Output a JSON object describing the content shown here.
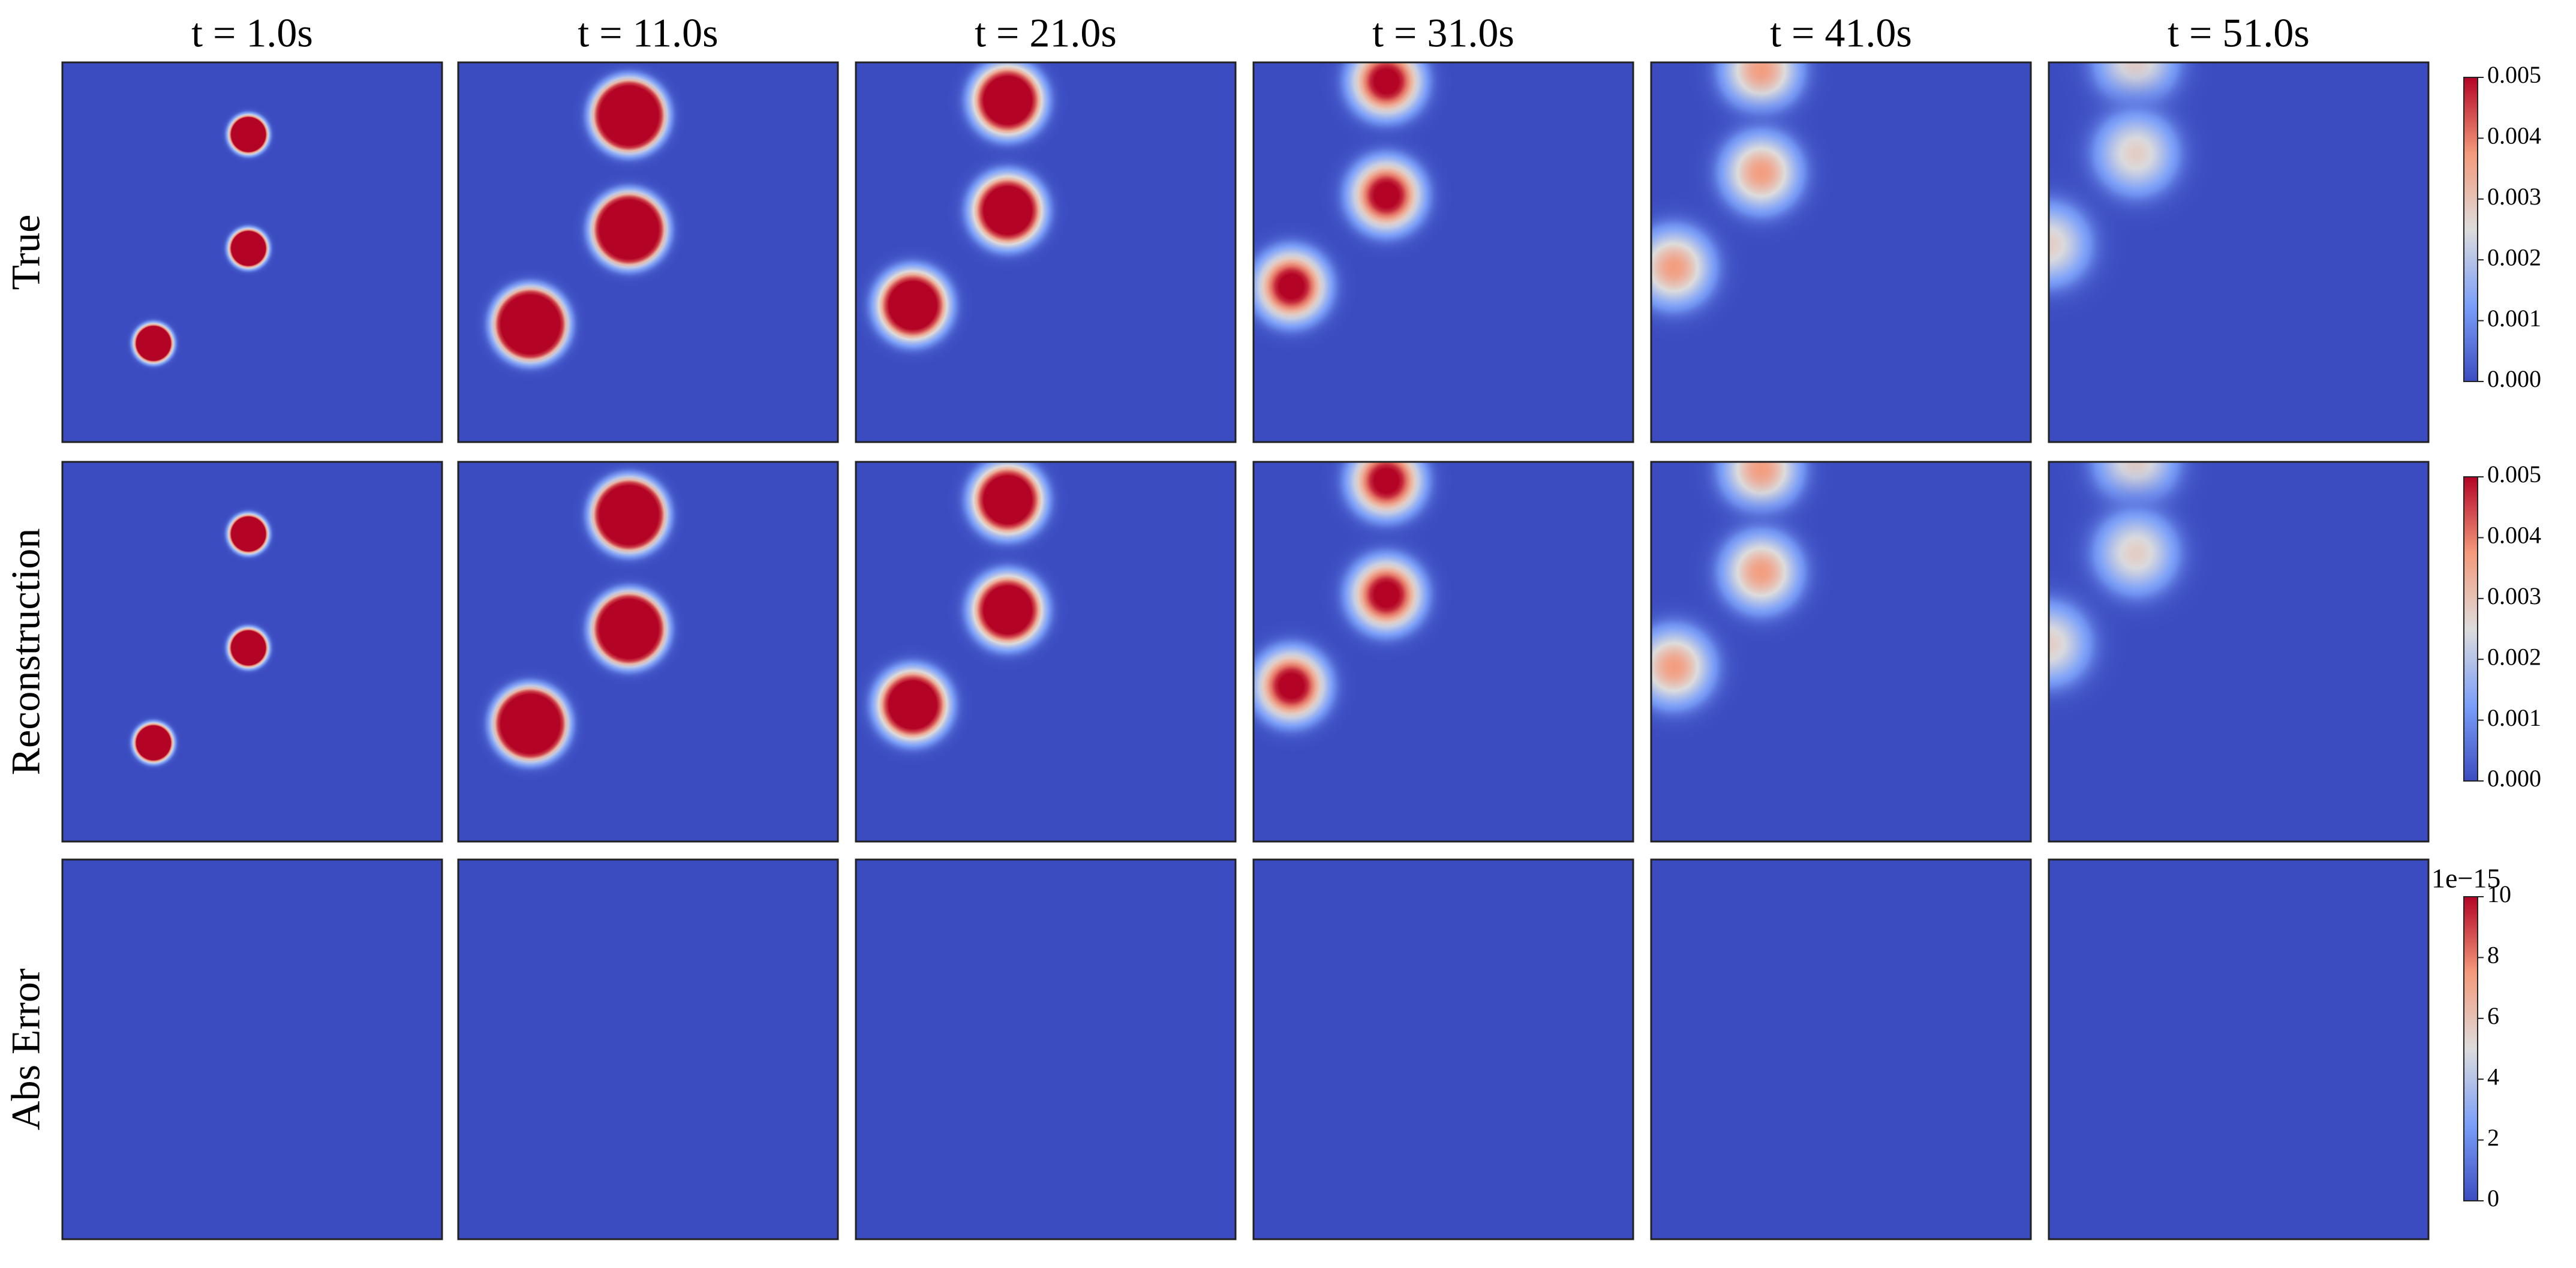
{
  "chart_data": {
    "type": "heatmap",
    "columns": [
      "t = 1.0s",
      "t = 11.0s",
      "t = 21.0s",
      "t = 31.0s",
      "t = 41.0s",
      "t = 51.0s"
    ],
    "rows": [
      {
        "label": "True",
        "background": 0,
        "clim": [
          0,
          0.005
        ],
        "cticks": [
          {
            "value": 0,
            "label": "0.000"
          },
          0.001,
          0.002,
          0.003,
          0.004,
          0.005
        ],
        "panels": [
          [
            {
              "x": 0.49,
              "y": 0.19,
              "sigma": 0.03,
              "peak": 0.05
            },
            {
              "x": 0.49,
              "y": 0.49,
              "sigma": 0.03,
              "peak": 0.05
            },
            {
              "x": 0.24,
              "y": 0.74,
              "sigma": 0.03,
              "peak": 0.05
            }
          ],
          [
            {
              "x": 0.45,
              "y": 0.14,
              "sigma": 0.062,
              "peak": 0.03
            },
            {
              "x": 0.45,
              "y": 0.44,
              "sigma": 0.062,
              "peak": 0.03
            },
            {
              "x": 0.19,
              "y": 0.69,
              "sigma": 0.062,
              "peak": 0.03
            }
          ],
          [
            {
              "x": 0.4,
              "y": 0.1,
              "sigma": 0.072,
              "peak": 0.012
            },
            {
              "x": 0.4,
              "y": 0.39,
              "sigma": 0.072,
              "peak": 0.012
            },
            {
              "x": 0.15,
              "y": 0.64,
              "sigma": 0.072,
              "peak": 0.012
            }
          ],
          [
            {
              "x": 0.35,
              "y": 0.05,
              "sigma": 0.085,
              "peak": 0.006
            },
            {
              "x": 0.35,
              "y": 0.35,
              "sigma": 0.085,
              "peak": 0.006
            },
            {
              "x": 0.1,
              "y": 0.59,
              "sigma": 0.085,
              "peak": 0.006
            }
          ],
          [
            {
              "x": 0.29,
              "y": 0.02,
              "sigma": 0.1,
              "peak": 0.0037
            },
            {
              "x": 0.29,
              "y": 0.29,
              "sigma": 0.1,
              "peak": 0.0037
            },
            {
              "x": 0.06,
              "y": 0.54,
              "sigma": 0.1,
              "peak": 0.0037
            }
          ],
          [
            {
              "x": 0.23,
              "y": 0.0,
              "sigma": 0.11,
              "peak": 0.0028
            },
            {
              "x": 0.23,
              "y": 0.24,
              "sigma": 0.11,
              "peak": 0.0028
            },
            {
              "x": 0.0,
              "y": 0.48,
              "sigma": 0.11,
              "peak": 0.0028
            }
          ]
        ]
      },
      {
        "label": "Reconstruction",
        "background": 0,
        "clim": [
          0,
          0.005
        ],
        "cticks": [
          {
            "value": 0,
            "label": "0.000"
          },
          0.001,
          0.002,
          0.003,
          0.004,
          0.005
        ],
        "panels": [
          [
            {
              "x": 0.49,
              "y": 0.19,
              "sigma": 0.03,
              "peak": 0.05
            },
            {
              "x": 0.49,
              "y": 0.49,
              "sigma": 0.03,
              "peak": 0.05
            },
            {
              "x": 0.24,
              "y": 0.74,
              "sigma": 0.03,
              "peak": 0.05
            }
          ],
          [
            {
              "x": 0.45,
              "y": 0.14,
              "sigma": 0.062,
              "peak": 0.03
            },
            {
              "x": 0.45,
              "y": 0.44,
              "sigma": 0.062,
              "peak": 0.03
            },
            {
              "x": 0.19,
              "y": 0.69,
              "sigma": 0.062,
              "peak": 0.03
            }
          ],
          [
            {
              "x": 0.4,
              "y": 0.1,
              "sigma": 0.072,
              "peak": 0.012
            },
            {
              "x": 0.4,
              "y": 0.39,
              "sigma": 0.072,
              "peak": 0.012
            },
            {
              "x": 0.15,
              "y": 0.64,
              "sigma": 0.072,
              "peak": 0.012
            }
          ],
          [
            {
              "x": 0.35,
              "y": 0.05,
              "sigma": 0.085,
              "peak": 0.006
            },
            {
              "x": 0.35,
              "y": 0.35,
              "sigma": 0.085,
              "peak": 0.006
            },
            {
              "x": 0.1,
              "y": 0.59,
              "sigma": 0.085,
              "peak": 0.006
            }
          ],
          [
            {
              "x": 0.29,
              "y": 0.02,
              "sigma": 0.1,
              "peak": 0.0037
            },
            {
              "x": 0.29,
              "y": 0.29,
              "sigma": 0.1,
              "peak": 0.0037
            },
            {
              "x": 0.06,
              "y": 0.54,
              "sigma": 0.1,
              "peak": 0.0037
            }
          ],
          [
            {
              "x": 0.23,
              "y": 0.0,
              "sigma": 0.11,
              "peak": 0.0028
            },
            {
              "x": 0.23,
              "y": 0.24,
              "sigma": 0.11,
              "peak": 0.0028
            },
            {
              "x": 0.0,
              "y": 0.48,
              "sigma": 0.11,
              "peak": 0.0028
            }
          ]
        ]
      },
      {
        "label": "Abs Error",
        "background": 0,
        "clim": [
          0,
          10
        ],
        "offset_label": "1e−15",
        "cticks": [
          0,
          2,
          4,
          6,
          8,
          10
        ],
        "panels": [
          [],
          [],
          [],
          [],
          [],
          []
        ]
      }
    ]
  }
}
